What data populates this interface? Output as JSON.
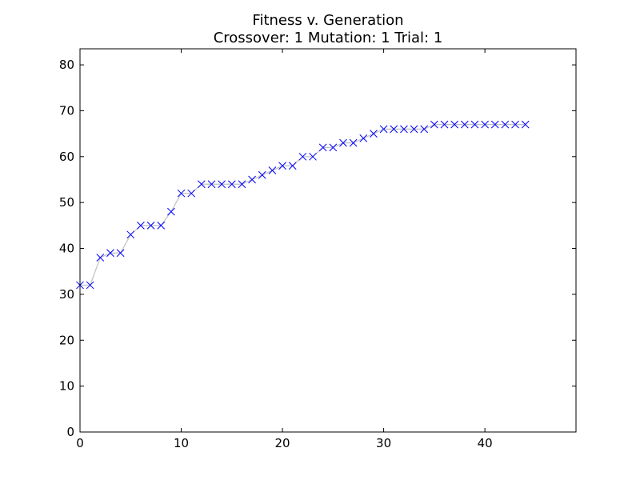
{
  "chart_data": {
    "type": "line",
    "title": "Fitness v. Generation",
    "subtitle": "Crossover: 1 Mutation: 1 Trial: 1",
    "xlabel": "",
    "ylabel": "",
    "xlim": [
      0,
      49
    ],
    "ylim": [
      0,
      83.5
    ],
    "xticks": [
      0,
      10,
      20,
      30,
      40
    ],
    "yticks": [
      0,
      10,
      20,
      30,
      40,
      50,
      60,
      70,
      80
    ],
    "grid": false,
    "marker": "x",
    "line_color": "#c0c0c0",
    "marker_color": "#0000ff",
    "x": [
      0,
      1,
      2,
      3,
      4,
      5,
      6,
      7,
      8,
      9,
      10,
      11,
      12,
      13,
      14,
      15,
      16,
      17,
      18,
      19,
      20,
      21,
      22,
      23,
      24,
      25,
      26,
      27,
      28,
      29,
      30,
      31,
      32,
      33,
      34,
      35,
      36,
      37,
      38,
      39,
      40,
      41,
      42,
      43,
      44
    ],
    "values": [
      32,
      32,
      38,
      39,
      39,
      43,
      45,
      45,
      45,
      48,
      52,
      52,
      54,
      54,
      54,
      54,
      54,
      55,
      56,
      57,
      58,
      58,
      60,
      60,
      62,
      62,
      63,
      63,
      64,
      65,
      66,
      66,
      66,
      66,
      66,
      67,
      67,
      67,
      67,
      67,
      67,
      67,
      67,
      67,
      67
    ]
  }
}
